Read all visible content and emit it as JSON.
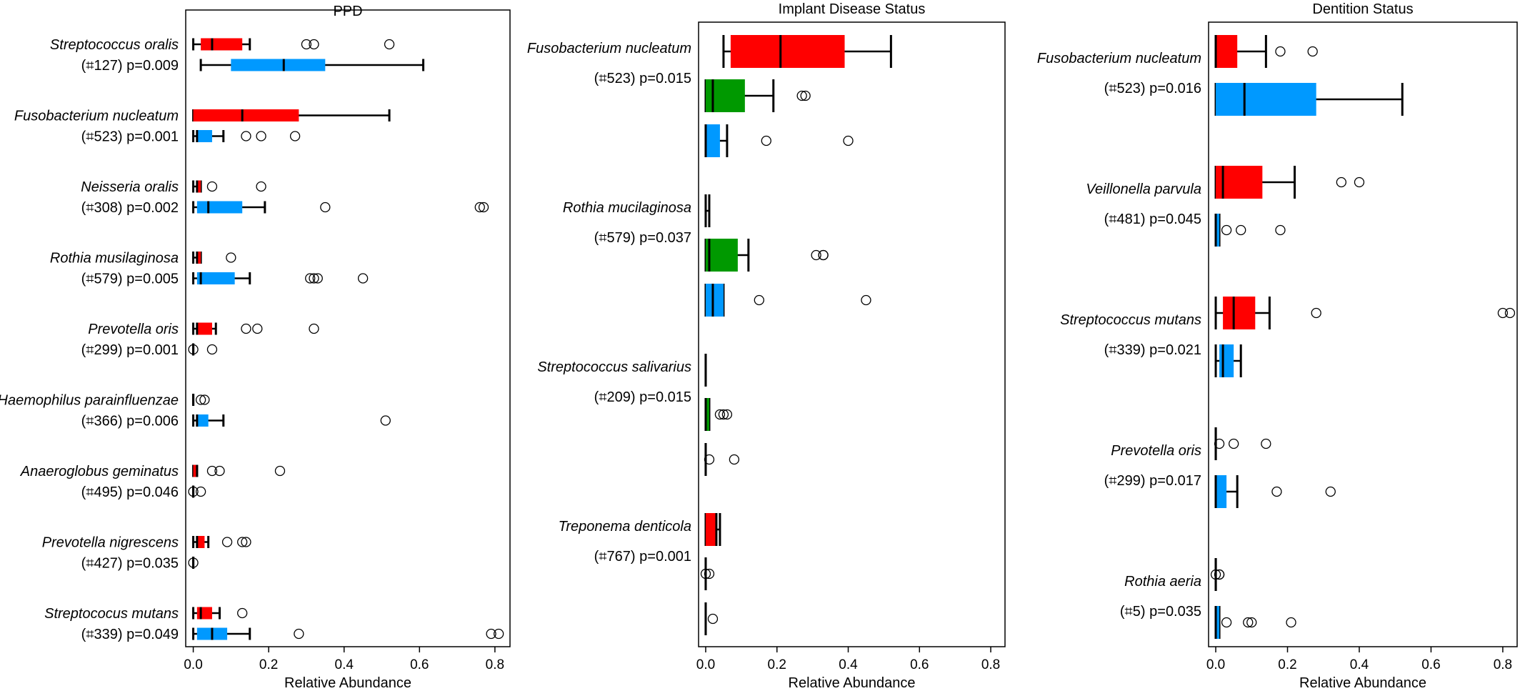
{
  "chart_data": [
    {
      "type": "boxplot",
      "title": "PPD",
      "xlabel": "Relative Abundance",
      "xlim": [
        -0.02,
        0.84
      ],
      "xticks": [
        "0.0",
        "0.2",
        "0.4",
        "0.6",
        "0.8"
      ],
      "xtick_values": [
        0,
        0.2,
        0.4,
        0.6,
        0.8
      ],
      "colors": {
        "red": "#ff0000",
        "blue": "#0099ff"
      },
      "groups": [
        {
          "taxon": "Streptococcus oralis",
          "stat": "(⌗127) p=0.009",
          "boxes": [
            {
              "color": "red",
              "q1": 0.02,
              "median": 0.05,
              "q3": 0.13,
              "whisker_low": 0.0,
              "whisker_high": 0.15,
              "outliers": [
                0.3,
                0.32,
                0.52
              ]
            },
            {
              "color": "blue",
              "q1": 0.1,
              "median": 0.24,
              "q3": 0.35,
              "whisker_low": 0.02,
              "whisker_high": 0.61,
              "outliers": []
            }
          ]
        },
        {
          "taxon": "Fusobacterium nucleatum",
          "stat": "(⌗523) p=0.001",
          "boxes": [
            {
              "color": "red",
              "q1": 0.0,
              "median": 0.13,
              "q3": 0.28,
              "whisker_low": 0.0,
              "whisker_high": 0.52,
              "outliers": []
            },
            {
              "color": "blue",
              "q1": 0.01,
              "median": 0.01,
              "q3": 0.05,
              "whisker_low": 0.0,
              "whisker_high": 0.08,
              "outliers": [
                0.14,
                0.18,
                0.27
              ]
            }
          ]
        },
        {
          "taxon": "Neisseria oralis",
          "stat": "(⌗308) p=0.002",
          "boxes": [
            {
              "color": "red",
              "q1": 0.01,
              "median": 0.01,
              "q3": 0.02,
              "whisker_low": 0.0,
              "whisker_high": 0.02,
              "outliers": [
                0.05,
                0.18
              ]
            },
            {
              "color": "blue",
              "q1": 0.01,
              "median": 0.04,
              "q3": 0.13,
              "whisker_low": 0.0,
              "whisker_high": 0.19,
              "outliers": [
                0.35,
                0.76,
                0.77
              ]
            }
          ]
        },
        {
          "taxon": "Rothia musilaginosa",
          "stat": "(⌗579) p=0.005",
          "boxes": [
            {
              "color": "red",
              "q1": 0.01,
              "median": 0.01,
              "q3": 0.02,
              "whisker_low": 0.0,
              "whisker_high": 0.02,
              "outliers": [
                0.1
              ]
            },
            {
              "color": "blue",
              "q1": 0.01,
              "median": 0.02,
              "q3": 0.11,
              "whisker_low": 0.0,
              "whisker_high": 0.15,
              "outliers": [
                0.31,
                0.32,
                0.33,
                0.45
              ]
            }
          ]
        },
        {
          "taxon": "Prevotella oris",
          "stat": "(⌗299) p=0.001",
          "boxes": [
            {
              "color": "red",
              "q1": 0.01,
              "median": 0.01,
              "q3": 0.05,
              "whisker_low": 0.0,
              "whisker_high": 0.06,
              "outliers": [
                0.14,
                0.17,
                0.32
              ]
            },
            {
              "color": "blue",
              "q1": 0.0,
              "median": 0.0,
              "q3": 0.0,
              "whisker_low": 0.0,
              "whisker_high": 0.0,
              "outliers": [
                0.0,
                0.05
              ]
            }
          ]
        },
        {
          "taxon": "Haemophilus parainfluenzae",
          "stat": "(⌗366) p=0.006",
          "boxes": [
            {
              "color": "red",
              "q1": 0.0,
              "median": 0.0,
              "q3": 0.0,
              "whisker_low": 0.0,
              "whisker_high": 0.0,
              "outliers": [
                0.02,
                0.03
              ]
            },
            {
              "color": "blue",
              "q1": 0.01,
              "median": 0.01,
              "q3": 0.04,
              "whisker_low": 0.0,
              "whisker_high": 0.08,
              "outliers": [
                0.51
              ]
            }
          ]
        },
        {
          "taxon": "Anaeroglobus geminatus",
          "stat": "(⌗495) p=0.046",
          "boxes": [
            {
              "color": "red",
              "q1": 0.0,
              "median": 0.01,
              "q3": 0.01,
              "whisker_low": 0.0,
              "whisker_high": 0.01,
              "outliers": [
                0.05,
                0.07,
                0.23
              ]
            },
            {
              "color": "blue",
              "q1": 0.0,
              "median": 0.0,
              "q3": 0.0,
              "whisker_low": 0.0,
              "whisker_high": 0.0,
              "outliers": [
                0.0,
                0.02
              ]
            }
          ]
        },
        {
          "taxon": "Prevotella nigrescens",
          "stat": "(⌗427) p=0.035",
          "boxes": [
            {
              "color": "red",
              "q1": 0.01,
              "median": 0.01,
              "q3": 0.03,
              "whisker_low": 0.0,
              "whisker_high": 0.04,
              "outliers": [
                0.09,
                0.13,
                0.14
              ]
            },
            {
              "color": "blue",
              "q1": 0.0,
              "median": 0.0,
              "q3": 0.0,
              "whisker_low": 0.0,
              "whisker_high": 0.0,
              "outliers": [
                0.0
              ]
            }
          ]
        },
        {
          "taxon": "Streptococus mutans",
          "stat": "(⌗339) p=0.049",
          "boxes": [
            {
              "color": "red",
              "q1": 0.01,
              "median": 0.02,
              "q3": 0.05,
              "whisker_low": 0.0,
              "whisker_high": 0.07,
              "outliers": [
                0.13
              ]
            },
            {
              "color": "blue",
              "q1": 0.01,
              "median": 0.05,
              "q3": 0.09,
              "whisker_low": 0.0,
              "whisker_high": 0.15,
              "outliers": [
                0.28,
                0.79,
                0.81
              ]
            }
          ]
        }
      ]
    },
    {
      "type": "boxplot",
      "title": "Implant Disease Status",
      "xlabel": "Relative Abundance",
      "xlim": [
        -0.02,
        0.84
      ],
      "xticks": [
        "0.0",
        "0.2",
        "0.4",
        "0.6",
        "0.8"
      ],
      "xtick_values": [
        0,
        0.2,
        0.4,
        0.6,
        0.8
      ],
      "colors": {
        "red": "#ff0000",
        "green": "#009900",
        "blue": "#0099ff"
      },
      "groups": [
        {
          "taxon": "Fusobacterium nucleatum",
          "stat": "(⌗523) p=0.015",
          "boxes": [
            {
              "color": "red",
              "q1": 0.07,
              "median": 0.21,
              "q3": 0.39,
              "whisker_low": 0.05,
              "whisker_high": 0.52,
              "outliers": []
            },
            {
              "color": "green",
              "q1": 0.0,
              "median": 0.02,
              "q3": 0.11,
              "whisker_low": 0.0,
              "whisker_high": 0.19,
              "outliers": [
                0.27,
                0.28
              ]
            },
            {
              "color": "blue",
              "q1": 0.0,
              "median": 0.0,
              "q3": 0.04,
              "whisker_low": 0.0,
              "whisker_high": 0.06,
              "outliers": [
                0.17,
                0.4
              ]
            }
          ]
        },
        {
          "taxon": "Rothia mucilaginosa",
          "stat": "(⌗579) p=0.037",
          "boxes": [
            {
              "color": "red",
              "q1": 0.0,
              "median": 0.0,
              "q3": 0.0,
              "whisker_low": 0.0,
              "whisker_high": 0.01,
              "outliers": []
            },
            {
              "color": "green",
              "q1": 0.0,
              "median": 0.01,
              "q3": 0.09,
              "whisker_low": 0.0,
              "whisker_high": 0.12,
              "outliers": [
                0.31,
                0.33,
                0.33
              ]
            },
            {
              "color": "blue",
              "q1": 0.0,
              "median": 0.02,
              "q3": 0.05,
              "whisker_low": 0.0,
              "whisker_high": 0.05,
              "outliers": [
                0.15,
                0.45
              ]
            }
          ]
        },
        {
          "taxon": "Streptococcus salivarius",
          "stat": "(⌗209) p=0.015",
          "boxes": [
            {
              "color": "red",
              "q1": 0.0,
              "median": 0.0,
              "q3": 0.0,
              "whisker_low": 0.0,
              "whisker_high": 0.0,
              "outliers": []
            },
            {
              "color": "green",
              "q1": 0.0,
              "median": 0.0,
              "q3": 0.01,
              "whisker_low": 0.0,
              "whisker_high": 0.01,
              "outliers": [
                0.04,
                0.05,
                0.06
              ]
            },
            {
              "color": "blue",
              "q1": 0.0,
              "median": 0.0,
              "q3": 0.0,
              "whisker_low": 0.0,
              "whisker_high": 0.0,
              "outliers": [
                0.01,
                0.08
              ]
            }
          ]
        },
        {
          "taxon": "Treponema denticola",
          "stat": "(⌗767) p=0.001",
          "boxes": [
            {
              "color": "red",
              "q1": 0.0,
              "median": 0.03,
              "q3": 0.03,
              "whisker_low": 0.0,
              "whisker_high": 0.04,
              "outliers": []
            },
            {
              "color": "green",
              "q1": 0.0,
              "median": 0.0,
              "q3": 0.0,
              "whisker_low": 0.0,
              "whisker_high": 0.0,
              "outliers": [
                0.0,
                0.01
              ]
            },
            {
              "color": "blue",
              "q1": 0.0,
              "median": 0.0,
              "q3": 0.0,
              "whisker_low": 0.0,
              "whisker_high": 0.0,
              "outliers": [
                0.02
              ]
            }
          ]
        }
      ]
    },
    {
      "type": "boxplot",
      "title": "Dentition Status",
      "xlabel": "Relative Abundance",
      "xlim": [
        -0.02,
        0.84
      ],
      "xticks": [
        "0.0",
        "0.2",
        "0.4",
        "0.6",
        "0.8"
      ],
      "xtick_values": [
        0,
        0.2,
        0.4,
        0.6,
        0.8
      ],
      "colors": {
        "red": "#ff0000",
        "blue": "#0099ff"
      },
      "groups": [
        {
          "taxon": "Fusobacterium nucleatum",
          "stat": "(⌗523) p=0.016",
          "boxes": [
            {
              "color": "red",
              "q1": 0.0,
              "median": 0.0,
              "q3": 0.06,
              "whisker_low": 0.0,
              "whisker_high": 0.14,
              "outliers": [
                0.18,
                0.27
              ]
            },
            {
              "color": "blue",
              "q1": 0.0,
              "median": 0.08,
              "q3": 0.28,
              "whisker_low": 0.0,
              "whisker_high": 0.52,
              "outliers": []
            }
          ]
        },
        {
          "taxon": "Veillonella parvula",
          "stat": "(⌗481) p=0.045",
          "boxes": [
            {
              "color": "red",
              "q1": 0.0,
              "median": 0.02,
              "q3": 0.13,
              "whisker_low": 0.0,
              "whisker_high": 0.22,
              "outliers": [
                0.35,
                0.4
              ]
            },
            {
              "color": "blue",
              "q1": 0.0,
              "median": 0.0,
              "q3": 0.01,
              "whisker_low": 0.0,
              "whisker_high": 0.01,
              "outliers": [
                0.03,
                0.07,
                0.18
              ]
            }
          ]
        },
        {
          "taxon": "Streptococcus mutans",
          "stat": "(⌗339) p=0.021",
          "boxes": [
            {
              "color": "red",
              "q1": 0.02,
              "median": 0.05,
              "q3": 0.11,
              "whisker_low": 0.0,
              "whisker_high": 0.15,
              "outliers": [
                0.28,
                0.8,
                0.82
              ]
            },
            {
              "color": "blue",
              "q1": 0.01,
              "median": 0.02,
              "q3": 0.05,
              "whisker_low": 0.0,
              "whisker_high": 0.07,
              "outliers": []
            }
          ]
        },
        {
          "taxon": "Prevotella oris",
          "stat": "(⌗299) p=0.017",
          "boxes": [
            {
              "color": "red",
              "q1": 0.0,
              "median": 0.0,
              "q3": 0.0,
              "whisker_low": 0.0,
              "whisker_high": 0.0,
              "outliers": [
                0.01,
                0.05,
                0.14
              ]
            },
            {
              "color": "blue",
              "q1": 0.0,
              "median": 0.0,
              "q3": 0.03,
              "whisker_low": 0.0,
              "whisker_high": 0.06,
              "outliers": [
                0.17,
                0.32
              ]
            }
          ]
        },
        {
          "taxon": "Rothia aeria",
          "stat": "(⌗5) p=0.035",
          "boxes": [
            {
              "color": "red",
              "q1": 0.0,
              "median": 0.0,
              "q3": 0.0,
              "whisker_low": 0.0,
              "whisker_high": 0.0,
              "outliers": [
                0.0,
                0.01,
                0.01
              ]
            },
            {
              "color": "blue",
              "q1": 0.0,
              "median": 0.0,
              "q3": 0.01,
              "whisker_low": 0.0,
              "whisker_high": 0.01,
              "outliers": [
                0.03,
                0.09,
                0.1,
                0.21
              ]
            }
          ]
        }
      ]
    }
  ]
}
